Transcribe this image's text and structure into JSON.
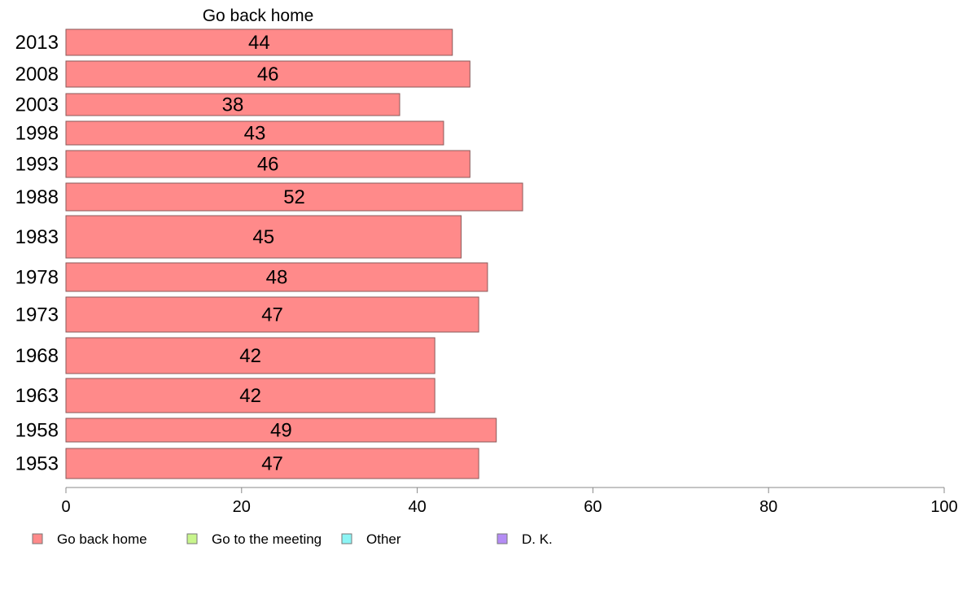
{
  "chart_data": {
    "type": "bar",
    "orientation": "horizontal",
    "title": "Go back home",
    "categories": [
      "2013",
      "2008",
      "2003",
      "1998",
      "1993",
      "1988",
      "1983",
      "1978",
      "1973",
      "1968",
      "1963",
      "1958",
      "1953"
    ],
    "series": [
      {
        "name": "Go back home",
        "values": [
          44,
          46,
          38,
          43,
          46,
          52,
          45,
          48,
          47,
          42,
          42,
          49,
          47
        ],
        "color": "#ff8a8a"
      }
    ],
    "xlim": [
      0,
      100
    ],
    "xticks": [
      0,
      20,
      40,
      60,
      80,
      100
    ],
    "grid": false,
    "legend_position": "bottom",
    "legend": [
      {
        "label": "Go back home",
        "color": "#ff8a8a"
      },
      {
        "label": "Go to the meeting",
        "color": "#c8f58c"
      },
      {
        "label": "Other",
        "color": "#8cf5f5"
      },
      {
        "label": "D. K.",
        "color": "#b48cf5"
      }
    ]
  }
}
